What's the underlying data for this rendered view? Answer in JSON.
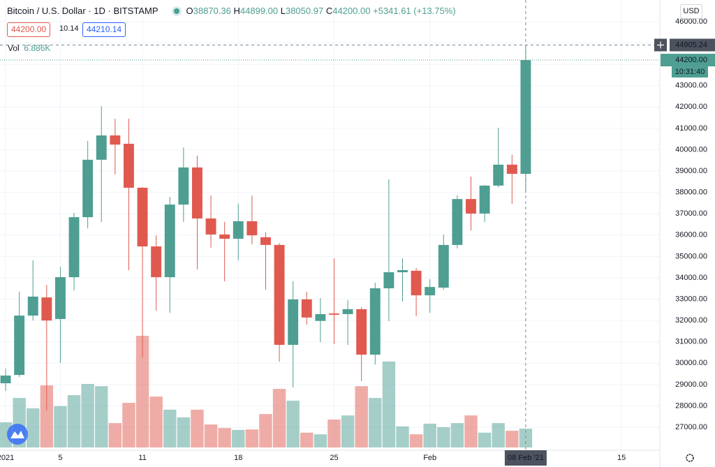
{
  "chart_data": {
    "type": "candlestick",
    "symbol": "Bitcoin / U.S. Dollar",
    "interval": "1D",
    "exchange": "BITSTAMP",
    "legend": {
      "o_label": "O",
      "o": "38870.36",
      "h_label": "H",
      "h": "44899.00",
      "l_label": "L",
      "l": "38050.97",
      "c_label": "C",
      "c": "44200.00",
      "change": "+5341.61 (+13.75%)"
    },
    "sell_price": "44200.00",
    "spread": "10.14",
    "buy_price": "44210.14",
    "currency": "USD",
    "up_color": "#4e9e92",
    "down_color": "#e0594f",
    "volume": {
      "name": "Vol",
      "last_label": "6.886K",
      "values": [
        9.2,
        18.1,
        14.3,
        22.7,
        15.1,
        19.1,
        23.2,
        22.4,
        8.9,
        16.3,
        40.8,
        18.6,
        13.8,
        11.0,
        13.8,
        8.4,
        7.1,
        6.4,
        6.6,
        12.2,
        21.4,
        17.1,
        5.4,
        4.8,
        10.2,
        11.7,
        22.4,
        18.1,
        31.4,
        7.7,
        4.8,
        8.7,
        7.4,
        8.9,
        11.7,
        5.4,
        8.9,
        6.1,
        6.886
      ]
    },
    "candles": [
      {
        "open": 29060,
        "high": 29750,
        "low": 28700,
        "close": 29420
      },
      {
        "open": 29450,
        "high": 33350,
        "low": 29350,
        "close": 32230
      },
      {
        "open": 32230,
        "high": 34820,
        "low": 32000,
        "close": 33120
      },
      {
        "open": 33080,
        "high": 33670,
        "low": 27780,
        "close": 32000
      },
      {
        "open": 32070,
        "high": 34520,
        "low": 30010,
        "close": 34030
      },
      {
        "open": 34030,
        "high": 37040,
        "low": 33410,
        "close": 36840
      },
      {
        "open": 36840,
        "high": 40410,
        "low": 36320,
        "close": 39530
      },
      {
        "open": 39530,
        "high": 42040,
        "low": 36610,
        "close": 40670
      },
      {
        "open": 40670,
        "high": 41450,
        "low": 38840,
        "close": 40240
      },
      {
        "open": 40280,
        "high": 41450,
        "low": 34360,
        "close": 38220
      },
      {
        "open": 38220,
        "high": 38250,
        "low": 30270,
        "close": 35470
      },
      {
        "open": 35470,
        "high": 35990,
        "low": 32460,
        "close": 34030
      },
      {
        "open": 34030,
        "high": 37790,
        "low": 32360,
        "close": 37430
      },
      {
        "open": 37430,
        "high": 40110,
        "low": 36620,
        "close": 39170
      },
      {
        "open": 39170,
        "high": 39720,
        "low": 34390,
        "close": 36780
      },
      {
        "open": 36780,
        "high": 37860,
        "low": 35410,
        "close": 36030
      },
      {
        "open": 36030,
        "high": 36620,
        "low": 33840,
        "close": 35830
      },
      {
        "open": 35830,
        "high": 37470,
        "low": 34820,
        "close": 36650
      },
      {
        "open": 36650,
        "high": 37860,
        "low": 35570,
        "close": 35990
      },
      {
        "open": 35900,
        "high": 36130,
        "low": 33440,
        "close": 35540
      },
      {
        "open": 35540,
        "high": 35630,
        "low": 30070,
        "close": 30860
      },
      {
        "open": 30860,
        "high": 33840,
        "low": 28860,
        "close": 32990
      },
      {
        "open": 32990,
        "high": 33350,
        "low": 31800,
        "close": 32140
      },
      {
        "open": 31980,
        "high": 33050,
        "low": 30990,
        "close": 32300
      },
      {
        "open": 32330,
        "high": 34910,
        "low": 30890,
        "close": 32270
      },
      {
        "open": 32300,
        "high": 32950,
        "low": 30860,
        "close": 32530
      },
      {
        "open": 32530,
        "high": 32630,
        "low": 29160,
        "close": 30400
      },
      {
        "open": 30400,
        "high": 33770,
        "low": 29940,
        "close": 33510
      },
      {
        "open": 33510,
        "high": 38610,
        "low": 31970,
        "close": 34260
      },
      {
        "open": 34260,
        "high": 34910,
        "low": 32890,
        "close": 34360
      },
      {
        "open": 34330,
        "high": 34460,
        "low": 32200,
        "close": 33180
      },
      {
        "open": 33180,
        "high": 33930,
        "low": 32360,
        "close": 33570
      },
      {
        "open": 33540,
        "high": 36030,
        "low": 33440,
        "close": 35540
      },
      {
        "open": 35540,
        "high": 37860,
        "low": 35380,
        "close": 37690
      },
      {
        "open": 37690,
        "high": 38740,
        "low": 36220,
        "close": 37010
      },
      {
        "open": 37010,
        "high": 38350,
        "low": 36610,
        "close": 38320
      },
      {
        "open": 38320,
        "high": 41030,
        "low": 38240,
        "close": 39300
      },
      {
        "open": 39300,
        "high": 39760,
        "low": 37460,
        "close": 38870
      },
      {
        "open": 38870.36,
        "high": 44899.0,
        "low": 38050.97,
        "close": 44200.0
      }
    ],
    "xlim": [
      -0.41,
      47.8
    ],
    "xticks": [
      {
        "value": 0,
        "label": "2021"
      },
      {
        "value": 4,
        "label": "5"
      },
      {
        "value": 10,
        "label": "11"
      },
      {
        "value": 17,
        "label": "18"
      },
      {
        "value": 24,
        "label": "25"
      },
      {
        "value": 31,
        "label": "Feb"
      },
      {
        "value": 45,
        "label": "15"
      }
    ],
    "ylim": [
      25922,
      47014
    ],
    "yticks": [
      {
        "value": 46000,
        "label": "46000.00"
      },
      {
        "value": 45000,
        "label": "45000.00"
      },
      {
        "value": 44000,
        "label": "44000.00"
      },
      {
        "value": 43000,
        "label": "43000.00"
      },
      {
        "value": 42000,
        "label": "42000.00"
      },
      {
        "value": 41000,
        "label": "41000.00"
      },
      {
        "value": 40000,
        "label": "40000.00"
      },
      {
        "value": 39000,
        "label": "39000.00"
      },
      {
        "value": 38000,
        "label": "38000.00"
      },
      {
        "value": 37000,
        "label": "37000.00"
      },
      {
        "value": 36000,
        "label": "36000.00"
      },
      {
        "value": 35000,
        "label": "35000.00"
      },
      {
        "value": 34000,
        "label": "34000.00"
      },
      {
        "value": 33000,
        "label": "33000.00"
      },
      {
        "value": 32000,
        "label": "32000.00"
      },
      {
        "value": 31000,
        "label": "31000.00"
      },
      {
        "value": 30000,
        "label": "30000.00"
      },
      {
        "value": 29000,
        "label": "29000.00"
      },
      {
        "value": 28000,
        "label": "28000.00"
      },
      {
        "value": 27000,
        "label": "27000.00"
      }
    ],
    "grid": true,
    "crosshair": {
      "x": {
        "value": 38,
        "label": "08 Feb '21"
      },
      "y": {
        "value": 44905.24,
        "label": "44905.24"
      }
    },
    "last_price": {
      "value": 44200.0,
      "label": "44200.00"
    },
    "countdown": "10:31:40"
  }
}
